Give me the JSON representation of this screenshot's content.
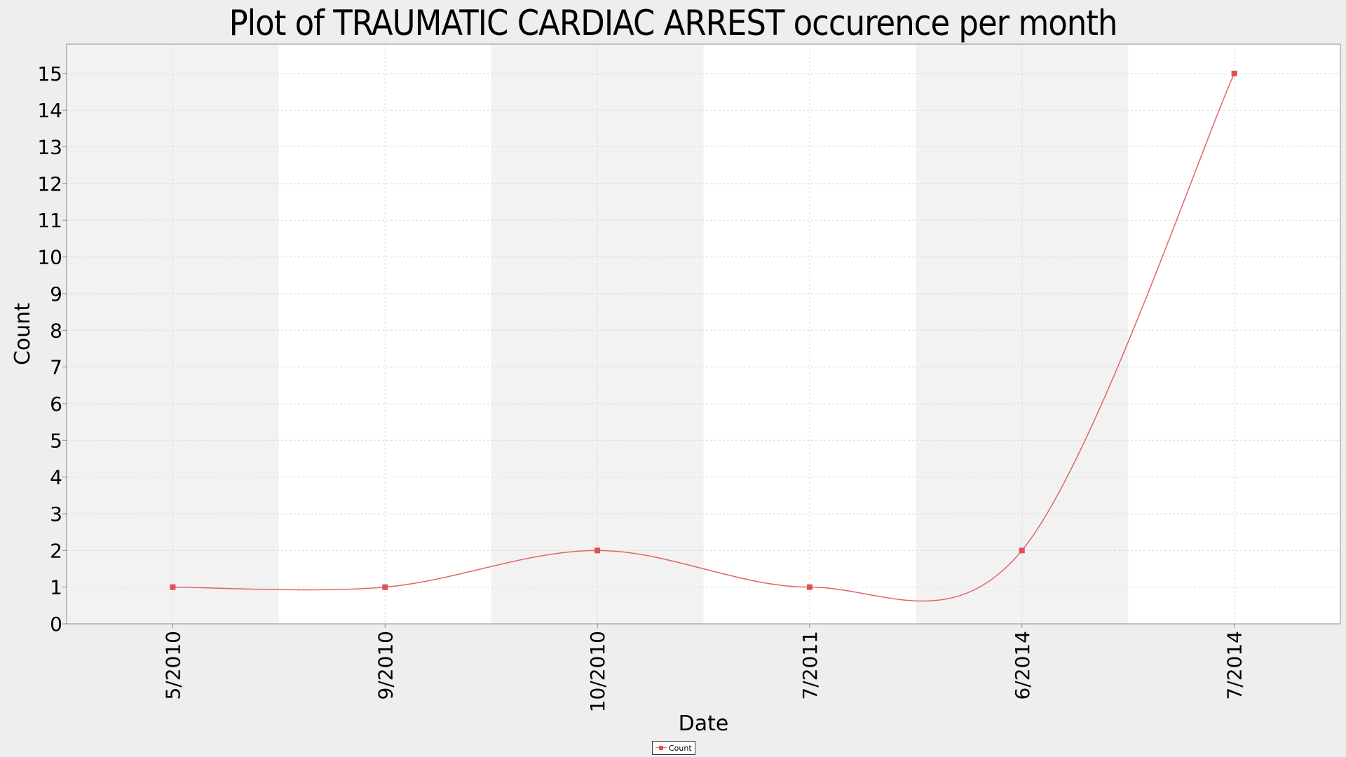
{
  "chart_data": {
    "type": "line",
    "title": "Plot of TRAUMATIC CARDIAC ARREST occurence per month",
    "xlabel": "Date",
    "ylabel": "Count",
    "categories": [
      "5/2010",
      "9/2010",
      "10/2010",
      "7/2011",
      "6/2014",
      "7/2014"
    ],
    "series": [
      {
        "name": "Count",
        "values": [
          1,
          1,
          2,
          1,
          2,
          15
        ],
        "color": "#e06666",
        "marker": "square"
      }
    ],
    "ylim": [
      0,
      15.8
    ],
    "yticks": [
      0,
      1,
      2,
      3,
      4,
      5,
      6,
      7,
      8,
      9,
      10,
      11,
      12,
      13,
      14,
      15
    ],
    "grid": true,
    "smooth": true,
    "legend": "bottom-center",
    "colors": {
      "plot_band_shaded": "#f2f2f2",
      "plot_band_plain": "#ffffff",
      "gridline": "#d9d9d9",
      "background": "#eeeeee"
    }
  }
}
